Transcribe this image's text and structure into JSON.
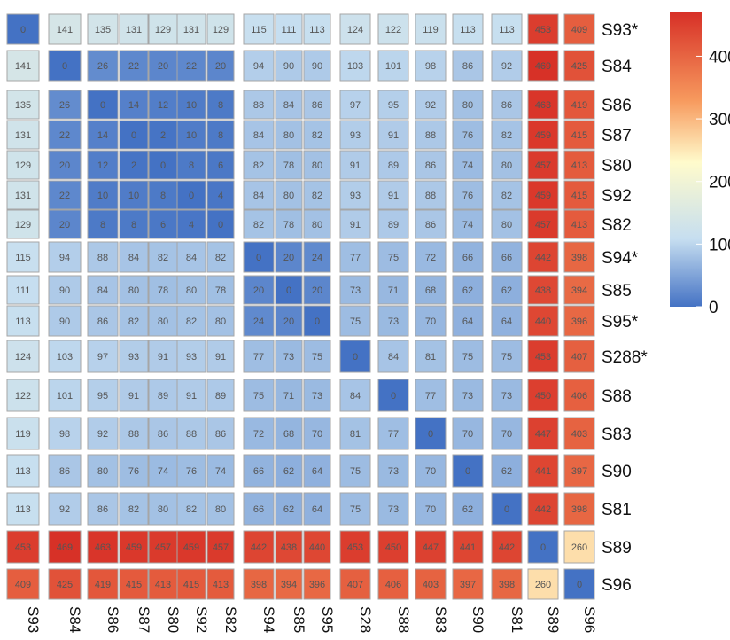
{
  "chart_data": {
    "type": "heatmap",
    "title": "",
    "row_labels": [
      "S93*",
      "S84",
      "S86",
      "S87",
      "S80",
      "S92",
      "S82",
      "S94*",
      "S85",
      "S95*",
      "S288*",
      "S88",
      "S83",
      "S90",
      "S81",
      "S89",
      "S96"
    ],
    "col_labels": [
      "S93",
      "S84",
      "S86",
      "S87",
      "S80",
      "S92",
      "S82",
      "S94",
      "S85",
      "S95",
      "S28",
      "S88",
      "S83",
      "S90",
      "S81",
      "S89",
      "S96"
    ],
    "values": [
      [
        0,
        141,
        135,
        131,
        129,
        131,
        129,
        115,
        111,
        113,
        124,
        122,
        119,
        113,
        113,
        453,
        409
      ],
      [
        141,
        0,
        26,
        22,
        20,
        22,
        20,
        94,
        90,
        90,
        103,
        101,
        98,
        86,
        92,
        469,
        425
      ],
      [
        135,
        26,
        0,
        14,
        12,
        10,
        8,
        88,
        84,
        86,
        97,
        95,
        92,
        80,
        86,
        463,
        419
      ],
      [
        131,
        22,
        14,
        0,
        2,
        10,
        8,
        84,
        80,
        82,
        93,
        91,
        88,
        76,
        82,
        459,
        415
      ],
      [
        129,
        20,
        12,
        2,
        0,
        8,
        6,
        82,
        78,
        80,
        91,
        89,
        86,
        74,
        80,
        457,
        413
      ],
      [
        131,
        22,
        10,
        10,
        8,
        0,
        4,
        84,
        80,
        82,
        93,
        91,
        88,
        76,
        82,
        459,
        415
      ],
      [
        129,
        20,
        8,
        8,
        6,
        4,
        0,
        82,
        78,
        80,
        91,
        89,
        86,
        74,
        80,
        457,
        413
      ],
      [
        115,
        94,
        88,
        84,
        82,
        84,
        82,
        0,
        20,
        24,
        77,
        75,
        72,
        66,
        66,
        442,
        398
      ],
      [
        111,
        90,
        84,
        80,
        78,
        80,
        78,
        20,
        0,
        20,
        73,
        71,
        68,
        62,
        62,
        438,
        394
      ],
      [
        113,
        90,
        86,
        82,
        80,
        82,
        80,
        24,
        20,
        0,
        75,
        73,
        70,
        64,
        64,
        440,
        396
      ],
      [
        124,
        103,
        97,
        93,
        91,
        93,
        91,
        77,
        73,
        75,
        0,
        84,
        81,
        75,
        75,
        453,
        407
      ],
      [
        122,
        101,
        95,
        91,
        89,
        91,
        89,
        75,
        71,
        73,
        84,
        0,
        77,
        73,
        73,
        450,
        406
      ],
      [
        119,
        98,
        92,
        88,
        86,
        88,
        86,
        72,
        68,
        70,
        81,
        77,
        0,
        70,
        70,
        447,
        403
      ],
      [
        113,
        86,
        80,
        76,
        74,
        76,
        74,
        66,
        62,
        64,
        75,
        73,
        70,
        0,
        62,
        441,
        397
      ],
      [
        113,
        92,
        86,
        82,
        80,
        82,
        80,
        66,
        62,
        64,
        75,
        73,
        70,
        62,
        0,
        442,
        398
      ],
      [
        453,
        469,
        463,
        459,
        457,
        459,
        457,
        442,
        438,
        440,
        453,
        450,
        447,
        441,
        442,
        0,
        260
      ],
      [
        409,
        425,
        419,
        415,
        413,
        415,
        413,
        398,
        394,
        396,
        407,
        406,
        403,
        397,
        398,
        260,
        0
      ]
    ],
    "color_scale": {
      "min": 0,
      "max": 470,
      "stops": [
        {
          "value": 0,
          "color": "#4472c4"
        },
        {
          "value": 110,
          "color": "#c6def0"
        },
        {
          "value": 230,
          "color": "#fffbcc"
        },
        {
          "value": 330,
          "color": "#f79a5e"
        },
        {
          "value": 470,
          "color": "#d73027"
        }
      ]
    },
    "legend_ticks": [
      0,
      100,
      200,
      300,
      400
    ],
    "legend_placement": "top-right",
    "grid": false
  }
}
